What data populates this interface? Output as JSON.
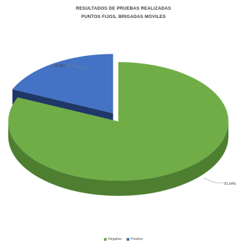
{
  "chart_data": {
    "type": "pie",
    "style": "3d-exploded",
    "title_lines": [
      "RESULTADOS DE PRUEBAS REALIZADAS",
      "PUNTOS FIJOS, BRIGADAS MOVILES"
    ],
    "slices": [
      {
        "name": "Negativo",
        "value": 81.64,
        "label": "81,64%",
        "color": "#70ad47",
        "side_color": "#4e7f31"
      },
      {
        "name": "Positivo",
        "value": 18.36,
        "label": "18,36%",
        "color": "#4472c4",
        "side_color": "#27457f"
      }
    ],
    "legend_position": "bottom"
  }
}
